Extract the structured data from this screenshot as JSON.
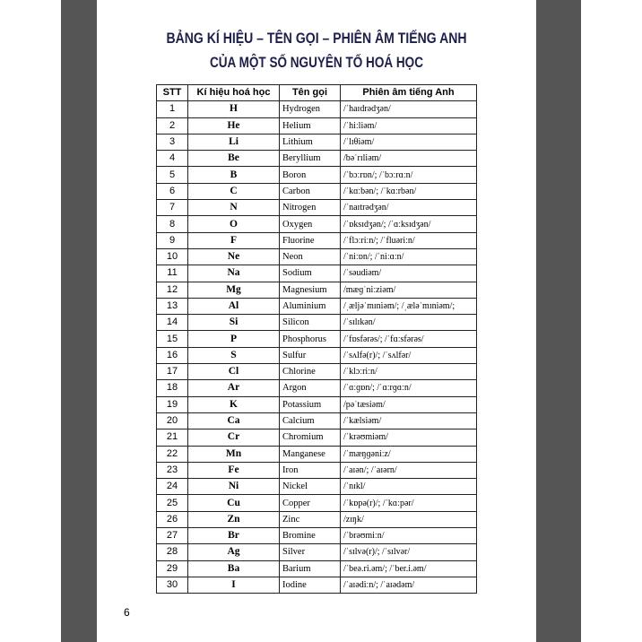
{
  "page": {
    "title_lines": [
      "BẢNG KÍ HIỆU – TÊN GỌI – PHIÊN ÂM TIẾNG ANH",
      "CỦA MỘT SỐ NGUYÊN TỐ HOÁ HỌC"
    ],
    "table": {
      "header": [
        "STT",
        "Kí hiệu hoá học",
        "Tên gọi",
        "Phiên âm tiếng Anh"
      ],
      "rows": [
        [
          "1",
          "H",
          "Hydrogen",
          "/ˈhaɪdrədʒən/"
        ],
        [
          "2",
          "He",
          "Helium",
          "/ˈhiːliəm/"
        ],
        [
          "3",
          "Li",
          "Lithium",
          "/ˈlɪθiəm/"
        ],
        [
          "4",
          "Be",
          "Beryllium",
          "/bəˈrɪliəm/"
        ],
        [
          "5",
          "B",
          "Boron",
          "/ˈbɔːrɒn/; /ˈbɔːrɑːn/"
        ],
        [
          "6",
          "C",
          "Carbon",
          "/ˈkɑːbən/; /ˈkɑːrbən/"
        ],
        [
          "7",
          "N",
          "Nitrogen",
          "/ˈnaɪtrədʒən/"
        ],
        [
          "8",
          "O",
          "Oxygen",
          "/ˈɒksɪdʒən/; /ˈɑːksɪdʒən/"
        ],
        [
          "9",
          "F",
          "Fluorine",
          "/ˈflɔːriːn/; /ˈfluəriːn/"
        ],
        [
          "10",
          "Ne",
          "Neon",
          "/ˈniːɒn/; /ˈniːɑːn/"
        ],
        [
          "11",
          "Na",
          "Sodium",
          "/ˈsəudiəm/"
        ],
        [
          "12",
          "Mg",
          "Magnesium",
          "/mæɡˈniːziəm/"
        ],
        [
          "13",
          "Al",
          "Aluminium",
          "/ˌæljəˈmɪniəm/; /ˌæləˈmɪniəm/;"
        ],
        [
          "14",
          "Si",
          "Silicon",
          "/ˈsɪlɪkən/"
        ],
        [
          "15",
          "P",
          "Phosphorus",
          "/ˈfɒsfərəs/; /ˈfɑːsfərəs/"
        ],
        [
          "16",
          "S",
          "Sulfur",
          "/ˈsʌlfə(r)/; /ˈsʌlfər/"
        ],
        [
          "17",
          "Cl",
          "Chlorine",
          "/ˈklɔːriːn/"
        ],
        [
          "18",
          "Ar",
          "Argon",
          "/ˈɑːɡɒn/; /ˈɑːrɡɑːn/"
        ],
        [
          "19",
          "K",
          "Potassium",
          "/pəˈtæsiəm/"
        ],
        [
          "20",
          "Ca",
          "Calcium",
          "/ˈkælsiəm/"
        ],
        [
          "21",
          "Cr",
          "Chromium",
          "/ˈkrəʊmiəm/"
        ],
        [
          "22",
          "Mn",
          "Manganese",
          "/ˈmæŋɡəniːz/"
        ],
        [
          "23",
          "Fe",
          "Iron",
          "/ˈaɪən/; /ˈaɪərn/"
        ],
        [
          "24",
          "Ni",
          "Nickel",
          "/ˈnɪkl/"
        ],
        [
          "25",
          "Cu",
          "Copper",
          "/ˈkɒpə(r)/; /ˈkɑːpər/"
        ],
        [
          "26",
          "Zn",
          "Zinc",
          "/zɪŋk/"
        ],
        [
          "27",
          "Br",
          "Bromine",
          "/ˈbrəʊmiːn/"
        ],
        [
          "28",
          "Ag",
          "Silver",
          "/ˈsɪlvə(r)/; /ˈsɪlvər/"
        ],
        [
          "29",
          "Ba",
          "Barium",
          "/ˈbeə.ri.əm/; /ˈber.i.əm/"
        ],
        [
          "30",
          "I",
          "Iodine",
          "/ˈaɪədiːn/; /ˈaɪədəm/"
        ]
      ]
    },
    "page_number": "6"
  }
}
